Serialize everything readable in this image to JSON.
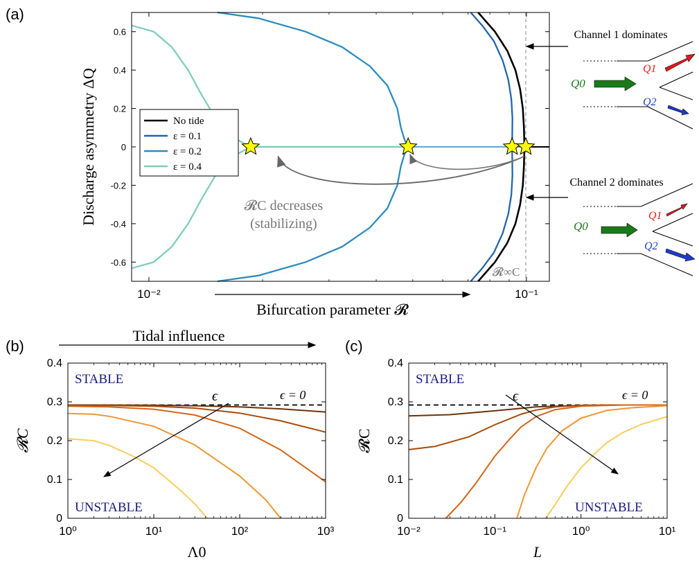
{
  "panel_labels": {
    "a": "(a)",
    "b": "(b)",
    "c": "(c)"
  },
  "colors": {
    "no_tide": "#000000",
    "eps01": "#2166ac",
    "eps02": "#2b8cbe",
    "eps04": "#7fcdbb",
    "stars": "#ffff00",
    "brown_series": [
      "#6b3309",
      "#a84a06",
      "#d56416",
      "#f0972e",
      "#fbcd5e"
    ],
    "annotation_gray": "#777777",
    "stable_text": "#1a1a80",
    "green_arrow": "#1a7a1a",
    "red_arrow": "#e31a1c",
    "blue_arrow": "#1f3cc9"
  },
  "chart_data": [
    {
      "type": "line",
      "panel": "a",
      "xscale": "log",
      "xlim": [
        0.009,
        0.115
      ],
      "ylim": [
        -0.7,
        0.7
      ],
      "xticks": [
        0.01,
        0.1
      ],
      "xtick_labels": [
        "10⁻²",
        "10⁻¹"
      ],
      "yticks": [
        -0.6,
        -0.4,
        -0.2,
        0,
        0.2,
        0.4,
        0.6
      ],
      "ytick_labels": [
        "-0.6",
        "-0.4",
        "-0.2",
        "0",
        "0.2",
        "0.4",
        "0.6"
      ],
      "xlabel": "Bifurcation parameter 𝓡",
      "ylabel": "Discharge asymmetry ΔQ",
      "legend_position": "center-left",
      "series": [
        {
          "name": "No tide",
          "color_key": "no_tide",
          "Rc": 0.0959,
          "branch": [
            [
              0.0959,
              0
            ],
            [
              0.0968,
              0.15
            ],
            [
              0.0975,
              0.2
            ],
            [
              0.0992,
              -0.3
            ],
            [
              0.0955,
              0.3
            ],
            [
              0.093,
              0.4
            ],
            [
              0.089,
              0.5
            ],
            [
              0.0825,
              0.6
            ],
            [
              0.074,
              0.7
            ]
          ]
        },
        {
          "name": "ε = 0.1",
          "color_key": "eps01",
          "Rc": 0.0916,
          "branch": [
            [
              0.0916,
              0
            ],
            [
              0.0914,
              0.15
            ],
            [
              0.0905,
              0.25
            ],
            [
              0.0885,
              0.35
            ],
            [
              0.0855,
              0.45
            ],
            [
              0.081,
              0.55
            ],
            [
              0.0755,
              0.64
            ],
            [
              0.071,
              0.7
            ]
          ]
        },
        {
          "name": "ε = 0.2",
          "color_key": "eps02",
          "Rc": 0.0486,
          "branch": [
            [
              0.0486,
              0
            ],
            [
              0.0475,
              0.04
            ],
            [
              0.0465,
              0.1
            ],
            [
              0.0455,
              0.2
            ],
            [
              0.0425,
              0.32
            ],
            [
              0.0385,
              0.42
            ],
            [
              0.0325,
              0.52
            ],
            [
              0.026,
              0.6
            ],
            [
              0.0185,
              0.67
            ],
            [
              0.015,
              0.7
            ]
          ]
        },
        {
          "name": "ε = 0.4",
          "color_key": "eps04",
          "Rc": 0.0186,
          "branch": [
            [
              0.0186,
              0
            ],
            [
              0.0165,
              0.06
            ],
            [
              0.0148,
              0.17
            ],
            [
              0.0132,
              0.35
            ],
            [
              0.0118,
              0.5
            ],
            [
              0.0104,
              0.58
            ],
            [
              0.009,
              0.63
            ]
          ]
        }
      ],
      "star_points": [
        [
          0.0186,
          0
        ],
        [
          0.0486,
          0
        ],
        [
          0.0916,
          0
        ],
        [
          0.0996,
          0
        ]
      ],
      "rc_inf": 0.0996,
      "annotations": {
        "rc_inf_label": "𝓡∞C",
        "decrease_label_1": "𝓡C decreases",
        "decrease_label_2": "(stabilizing)",
        "channel1": "Channel 1 dominates",
        "channel2": "Channel 2 dominates",
        "q0": "Q0",
        "q1": "Q1",
        "q2": "Q2"
      }
    },
    {
      "type": "line",
      "panel": "b",
      "xscale": "log",
      "xlim": [
        1,
        1000
      ],
      "ylim": [
        0,
        0.4
      ],
      "xticks": [
        1,
        10,
        100,
        1000
      ],
      "xtick_labels": [
        "10⁰",
        "10¹",
        "10²",
        "10³"
      ],
      "yticks": [
        0,
        0.1,
        0.2,
        0.3,
        0.4
      ],
      "ytick_labels": [
        "0",
        "0.1",
        "0.2",
        "0.3",
        "0.4"
      ],
      "xlabel": "Λ0",
      "ylabel": "𝓡C",
      "top_label": "Tidal influence",
      "reference": {
        "value": 0.292,
        "label": "ϵ = 0"
      },
      "region_labels": {
        "stable": "STABLE",
        "unstable": "UNSTABLE",
        "eps": "ϵ"
      },
      "series": [
        {
          "x": [
            1,
            3,
            10,
            30,
            100,
            300,
            1000
          ],
          "y": [
            0.292,
            0.2918,
            0.2913,
            0.29,
            0.287,
            0.282,
            0.274
          ]
        },
        {
          "x": [
            1,
            3,
            10,
            30,
            100,
            300,
            1000
          ],
          "y": [
            0.291,
            0.2905,
            0.289,
            0.284,
            0.271,
            0.251,
            0.222
          ]
        },
        {
          "x": [
            1,
            3,
            10,
            30,
            100,
            300,
            1000
          ],
          "y": [
            0.289,
            0.287,
            0.281,
            0.266,
            0.232,
            0.176,
            0.094
          ]
        },
        {
          "x": [
            1,
            2,
            3,
            10,
            30,
            100,
            200,
            300
          ],
          "y": [
            0.27,
            0.268,
            0.263,
            0.237,
            0.189,
            0.109,
            0.048,
            0.0
          ]
        },
        {
          "x": [
            1,
            2,
            3,
            6,
            10,
            20,
            30,
            42
          ],
          "y": [
            0.205,
            0.2,
            0.188,
            0.158,
            0.13,
            0.074,
            0.037,
            0.0
          ]
        }
      ]
    },
    {
      "type": "line",
      "panel": "c",
      "xscale": "log",
      "xlim": [
        0.01,
        10
      ],
      "ylim": [
        0,
        0.4
      ],
      "xticks": [
        0.01,
        0.1,
        1,
        10
      ],
      "xtick_labels": [
        "10⁻²",
        "10⁻¹",
        "10⁰",
        "10¹"
      ],
      "yticks": [
        0,
        0.1,
        0.2,
        0.3,
        0.4
      ],
      "ytick_labels": [
        "0",
        "0.1",
        "0.2",
        "0.3",
        "0.4"
      ],
      "xlabel": "L",
      "ylabel": "𝓡C",
      "reference": {
        "value": 0.292,
        "label": "ϵ = 0"
      },
      "region_labels": {
        "stable": "STABLE",
        "unstable": "UNSTABLE",
        "eps": "ϵ"
      },
      "series": [
        {
          "x": [
            0.01,
            0.03,
            0.1,
            0.3,
            1,
            3,
            10
          ],
          "y": [
            0.264,
            0.267,
            0.277,
            0.287,
            0.291,
            0.292,
            0.292
          ]
        },
        {
          "x": [
            0.01,
            0.02,
            0.05,
            0.1,
            0.2,
            0.3,
            0.5,
            1,
            3,
            10
          ],
          "y": [
            0.177,
            0.185,
            0.21,
            0.241,
            0.268,
            0.279,
            0.287,
            0.291,
            0.292,
            0.292
          ]
        },
        {
          "x": [
            0.027,
            0.04,
            0.06,
            0.1,
            0.15,
            0.2,
            0.3,
            0.5,
            1,
            3,
            10
          ],
          "y": [
            0.0,
            0.04,
            0.09,
            0.16,
            0.205,
            0.235,
            0.262,
            0.28,
            0.289,
            0.292,
            0.292
          ]
        },
        {
          "x": [
            0.18,
            0.22,
            0.3,
            0.4,
            0.6,
            1,
            2,
            4,
            10
          ],
          "y": [
            0.0,
            0.06,
            0.13,
            0.18,
            0.225,
            0.258,
            0.278,
            0.285,
            0.29
          ]
        },
        {
          "x": [
            0.39,
            0.5,
            0.7,
            1,
            1.5,
            2,
            3,
            5,
            10
          ],
          "y": [
            0.0,
            0.035,
            0.085,
            0.13,
            0.17,
            0.195,
            0.22,
            0.242,
            0.262
          ]
        }
      ]
    }
  ]
}
